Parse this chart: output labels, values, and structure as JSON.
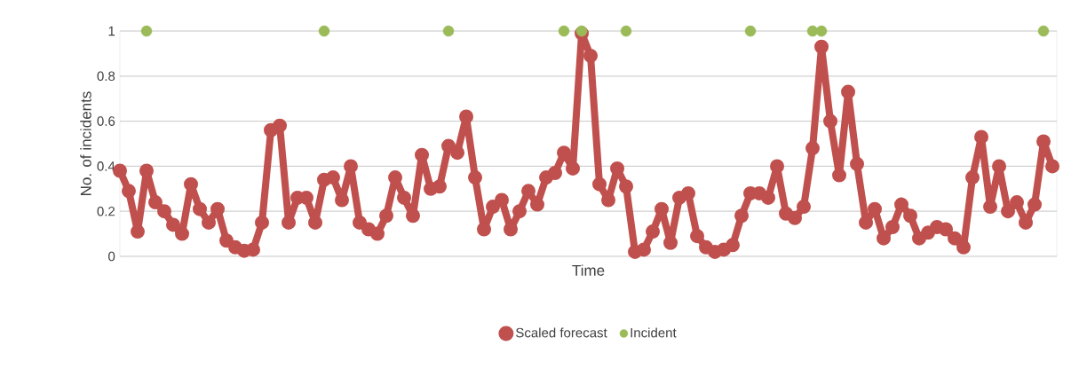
{
  "chart_data": {
    "type": "line",
    "xlabel": "Time",
    "ylabel": "No. of incidents",
    "categories": [
      null,
      null,
      null,
      null,
      null,
      null,
      null,
      null,
      null,
      null,
      null,
      null,
      null,
      null,
      null,
      null,
      null,
      null,
      null,
      null,
      null,
      null,
      null,
      null,
      null,
      null,
      null,
      null,
      null,
      null,
      null,
      null,
      null,
      null,
      null,
      null,
      null,
      null,
      null,
      null,
      null,
      null,
      null,
      null,
      null,
      null,
      null,
      null,
      null,
      null,
      null,
      null,
      null,
      null,
      null,
      null,
      null,
      null,
      null,
      null,
      null,
      null,
      null,
      null,
      null,
      null,
      null,
      null,
      null,
      null,
      null,
      null,
      null,
      null,
      null,
      null,
      null,
      null,
      null,
      null,
      null,
      null,
      null,
      null,
      null,
      null,
      null,
      null,
      null,
      null,
      null,
      null,
      null,
      null,
      null,
      null,
      null,
      null,
      null,
      null,
      null,
      null,
      null,
      null,
      null,
      null
    ],
    "ylim": [
      0,
      1
    ],
    "yticks": [
      0,
      0.2,
      0.4,
      0.6,
      0.8,
      1
    ],
    "grid": "y",
    "legend": "bottom",
    "marker": "circle",
    "line_style": "solid",
    "series": [
      {
        "name": "Scaled forecast",
        "color": "#c0504d",
        "values": [
          0.38,
          0.29,
          0.11,
          0.38,
          0.24,
          0.2,
          0.14,
          0.1,
          0.32,
          0.21,
          0.15,
          0.21,
          0.07,
          0.04,
          0.025,
          0.03,
          0.15,
          0.56,
          0.58,
          0.15,
          0.26,
          0.26,
          0.15,
          0.34,
          0.35,
          0.25,
          0.4,
          0.15,
          0.12,
          0.1,
          0.18,
          0.35,
          0.26,
          0.18,
          0.45,
          0.3,
          0.31,
          0.49,
          0.46,
          0.62,
          0.35,
          0.12,
          0.22,
          0.25,
          0.12,
          0.2,
          0.29,
          0.23,
          0.35,
          0.37,
          0.46,
          0.39,
          0.99,
          0.89,
          0.32,
          0.25,
          0.39,
          0.31,
          0.02,
          0.03,
          0.11,
          0.21,
          0.06,
          0.26,
          0.28,
          0.09,
          0.04,
          0.02,
          0.03,
          0.05,
          0.18,
          0.28,
          0.28,
          0.26,
          0.4,
          0.19,
          0.17,
          0.22,
          0.48,
          0.93,
          0.6,
          0.36,
          0.73,
          0.41,
          0.15,
          0.21,
          0.08,
          0.13,
          0.23,
          0.18,
          0.08,
          0.105,
          0.13,
          0.12,
          0.08,
          0.04,
          0.35,
          0.53,
          0.22,
          0.4,
          0.2,
          0.24,
          0.15,
          0.23,
          0.51,
          0.4
        ]
      },
      {
        "name": "Incident",
        "color": "#9bbb59",
        "type": "scatter",
        "values": [
          null,
          null,
          null,
          1,
          null,
          null,
          null,
          null,
          null,
          null,
          null,
          null,
          null,
          null,
          null,
          null,
          null,
          null,
          null,
          null,
          null,
          null,
          null,
          1,
          null,
          null,
          null,
          null,
          null,
          null,
          null,
          null,
          null,
          null,
          null,
          null,
          null,
          1,
          null,
          null,
          null,
          null,
          null,
          null,
          null,
          null,
          null,
          null,
          null,
          null,
          1,
          null,
          1,
          null,
          null,
          null,
          null,
          1,
          null,
          null,
          null,
          null,
          null,
          null,
          null,
          null,
          null,
          null,
          null,
          null,
          null,
          1,
          null,
          null,
          null,
          null,
          null,
          null,
          1,
          1,
          null,
          null,
          null,
          null,
          null,
          null,
          null,
          null,
          null,
          null,
          null,
          null,
          null,
          null,
          null,
          null,
          null,
          null,
          null,
          null,
          null,
          null,
          null,
          null,
          1,
          null
        ]
      }
    ]
  }
}
